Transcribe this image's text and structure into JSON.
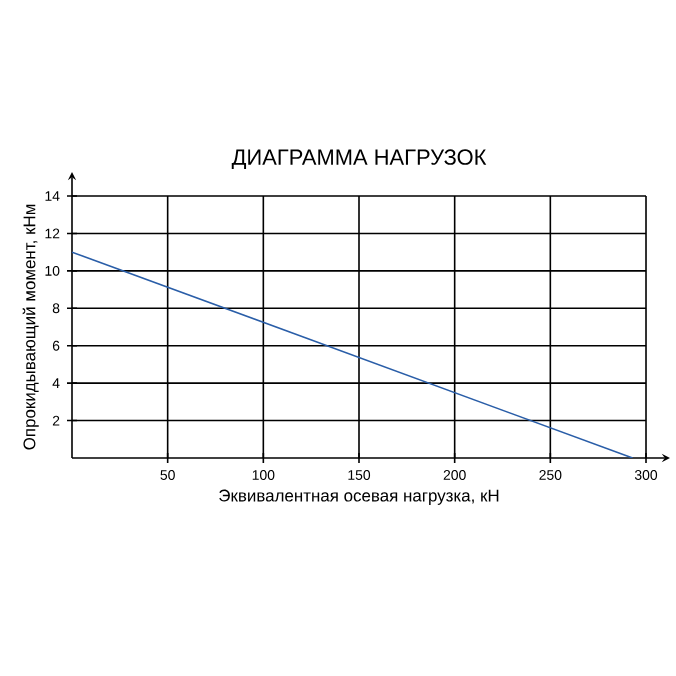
{
  "chart_data": {
    "type": "line",
    "title": "ДИАГРАММА НАГРУЗОК",
    "xlabel": "Эквивалентная осевая нагрузка, кН",
    "ylabel": "Опрокидывающий момент, кНм",
    "x": [
      0,
      293
    ],
    "series": [
      {
        "color": "#2a5ea8",
        "values": [
          11,
          0
        ]
      }
    ],
    "xlim": [
      0,
      300
    ],
    "ylim": [
      0,
      14
    ],
    "xticks": [
      50,
      100,
      150,
      200,
      250,
      300
    ],
    "yticks": [
      2,
      4,
      6,
      8,
      10,
      12,
      14
    ],
    "grid": true,
    "marker": "none",
    "line_style": "solid"
  }
}
